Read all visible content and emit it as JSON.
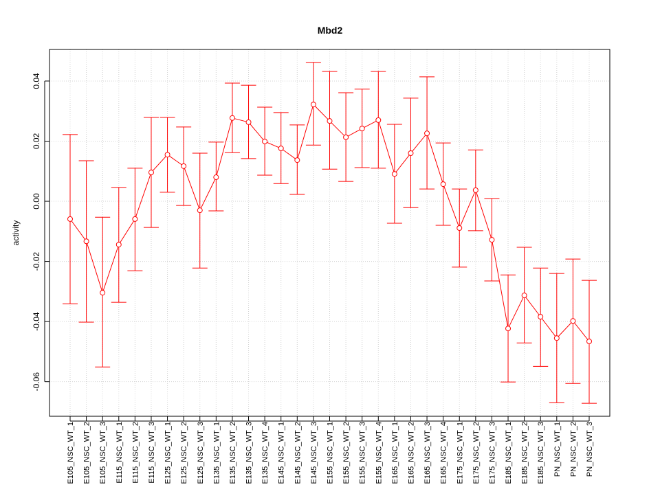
{
  "chart_data": {
    "type": "line",
    "title": "Mbd2",
    "xlabel": "",
    "ylabel": "activity",
    "ylim": [
      -0.0715,
      0.0505
    ],
    "yticks": [
      -0.06,
      -0.04,
      -0.02,
      0.0,
      0.02,
      0.04
    ],
    "ytick_labels": [
      "-0.06",
      "-0.04",
      "-0.02",
      "0.00",
      "0.02",
      "0.04"
    ],
    "grid": true,
    "color": "#ff0000",
    "categories": [
      "E105_NSC_WT_1",
      "E105_NSC_WT_2",
      "E105_NSC_WT_3",
      "E115_NSC_WT_1",
      "E115_NSC_WT_2",
      "E115_NSC_WT_3",
      "E125_NSC_WT_1",
      "E125_NSC_WT_2",
      "E125_NSC_WT_3",
      "E135_NSC_WT_1",
      "E135_NSC_WT_2",
      "E135_NSC_WT_3",
      "E135_NSC_WT_4",
      "E145_NSC_WT_1",
      "E145_NSC_WT_2",
      "E145_NSC_WT_3",
      "E155_NSC_WT_1",
      "E155_NSC_WT_2",
      "E155_NSC_WT_3",
      "E155_NSC_WT_4",
      "E165_NSC_WT_1",
      "E165_NSC_WT_2",
      "E165_NSC_WT_3",
      "E165_NSC_WT_4",
      "E175_NSC_WT_1",
      "E175_NSC_WT_2",
      "E175_NSC_WT_3",
      "E185_NSC_WT_1",
      "E185_NSC_WT_2",
      "E185_NSC_WT_3",
      "PN_NSC_WT_1",
      "PN_NSC_WT_2",
      "PN_NSC_WT_3"
    ],
    "values": [
      -0.0059,
      -0.0133,
      -0.0304,
      -0.0144,
      -0.0059,
      0.0096,
      0.0155,
      0.0117,
      -0.003,
      0.008,
      0.0277,
      0.0263,
      0.0199,
      0.0176,
      0.0137,
      0.0322,
      0.0267,
      0.0213,
      0.0242,
      0.027,
      0.0091,
      0.016,
      0.0226,
      0.0057,
      -0.0089,
      0.0037,
      -0.0128,
      -0.0423,
      -0.0313,
      -0.0384,
      -0.0455,
      -0.0398,
      -0.0466
    ],
    "upper": [
      0.0222,
      0.0135,
      -0.0053,
      0.0046,
      0.011,
      0.0279,
      0.0279,
      0.0247,
      0.016,
      0.0197,
      0.0393,
      0.0386,
      0.0313,
      0.0295,
      0.0254,
      0.0462,
      0.0432,
      0.0361,
      0.0373,
      0.0432,
      0.0256,
      0.0343,
      0.0414,
      0.0194,
      0.0041,
      0.0171,
      0.0009,
      -0.0245,
      -0.0153,
      -0.0222,
      -0.024,
      -0.0192,
      -0.0263
    ],
    "lower": [
      -0.0341,
      -0.0402,
      -0.0551,
      -0.0336,
      -0.0231,
      -0.0087,
      0.003,
      -0.0014,
      -0.0222,
      -0.0032,
      0.0162,
      0.0142,
      0.0087,
      0.0059,
      0.0023,
      0.0187,
      0.0107,
      0.0066,
      0.0112,
      0.011,
      -0.0073,
      -0.0021,
      0.0041,
      -0.008,
      -0.0219,
      -0.0098,
      -0.0265,
      -0.0601,
      -0.0471,
      -0.0549,
      -0.067,
      -0.0606,
      -0.0672
    ]
  }
}
